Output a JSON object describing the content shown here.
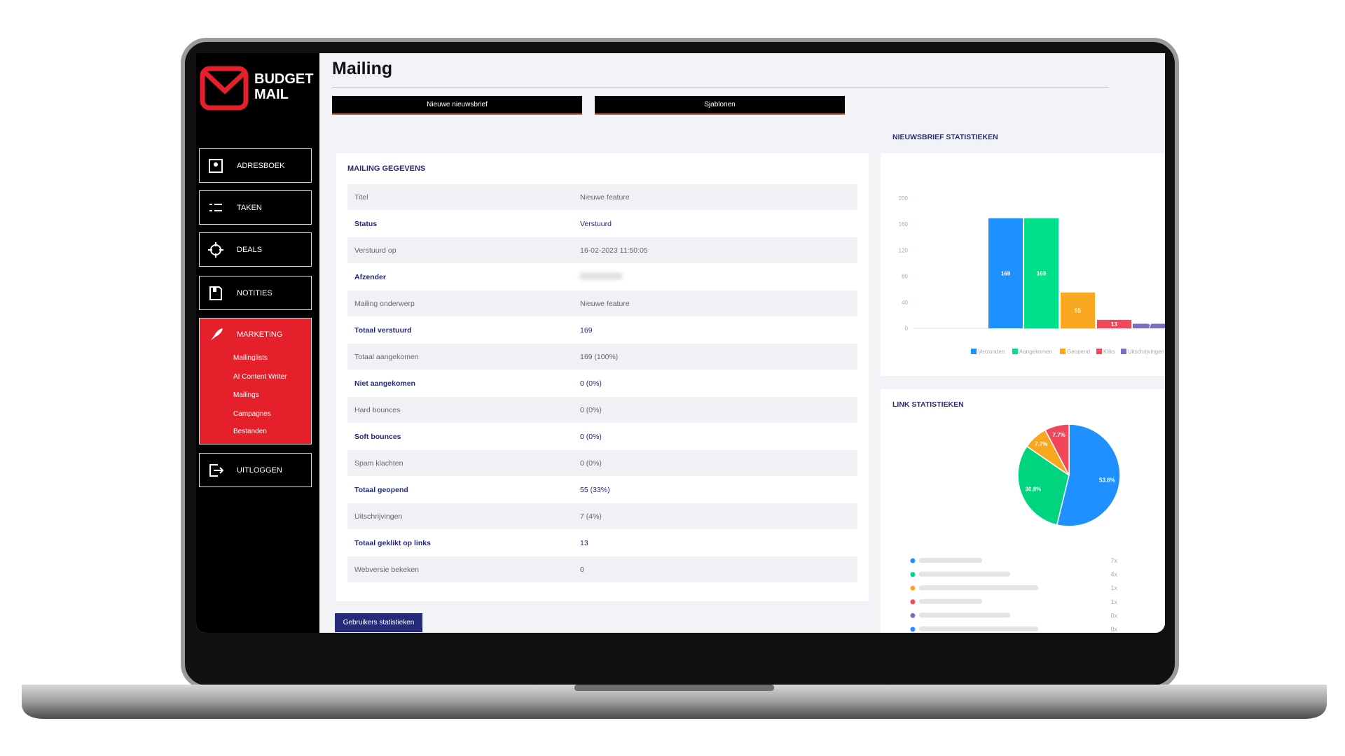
{
  "sidebar": {
    "logo": [
      "BUDGET",
      "MAIL"
    ],
    "nav": [
      "ADRESBOEK",
      "TAKEN",
      "DEALS",
      "NOTITIES",
      "MARKETING"
    ],
    "submenu": [
      "Mailinglists",
      "AI Content Writer",
      "Mailings",
      "Campagnes",
      "Bestanden"
    ],
    "logout": "UITLOGGEN"
  },
  "header": {
    "title": "Mailing",
    "buttons": [
      "Nieuwe nieuwsbrief",
      "Sjablonen"
    ]
  },
  "details": {
    "title": "MAILING GEGEVENS",
    "rows": [
      [
        "Titel",
        "Nieuwe feature"
      ],
      [
        "Status",
        "Verstuurd"
      ],
      [
        "Verstuurd op",
        "16-02-2023 11:50:05"
      ],
      [
        "Afzender"
      ],
      [
        "Mailing onderwerp",
        "Nieuwe feature"
      ],
      [
        "Totaal verstuurd",
        "169"
      ],
      [
        "Totaal aangekomen",
        "169 (100%)"
      ],
      [
        "Niet aangekomen",
        "0 (0%)"
      ],
      [
        "Hard bounces",
        "0 (0%)"
      ],
      [
        "Soft bounces",
        "0 (0%)"
      ],
      [
        "Spam klachten",
        "0 (0%)"
      ],
      [
        "Totaal geopend",
        "55 (33%)"
      ],
      [
        "Uitschrijvingen",
        "7 (4%)"
      ],
      [
        "Totaal geklikt op links",
        "13"
      ],
      [
        "Webversie bekeken",
        "0"
      ]
    ]
  },
  "footer_button": "Gebruikers statistieken",
  "chart_data": [
    {
      "type": "bar",
      "title": "NIEUWSBRIEF STATISTIEKEN",
      "categories": [
        "Verzonden",
        "Aangekomen",
        "Geopend",
        "Kliks",
        "Uitschrijvingen"
      ],
      "values": [
        169,
        169,
        55,
        13,
        7
      ],
      "colors": [
        "#1e90ff",
        "#00e08a",
        "#f9a71e",
        "#f0475b",
        "#7a6fbf"
      ],
      "ylim": [
        0,
        200
      ],
      "yticks": [
        0,
        40,
        80,
        120,
        160,
        200
      ]
    },
    {
      "type": "pie",
      "title": "LINK STATISTIEKEN",
      "values": [
        53.8,
        30.8,
        7.7,
        7.7
      ],
      "value_labels": [
        "53.8%",
        "30.8%",
        "7.7%",
        "7.7%"
      ],
      "colors": [
        "#1e90ff",
        "#00d47f",
        "#f9a71e",
        "#f0475b"
      ]
    }
  ],
  "links": {
    "counts": [
      "7x",
      "4x",
      "1x",
      "1x",
      "0x",
      "0x"
    ],
    "colors": [
      "#1e90ff",
      "#00d47f",
      "#f9a71e",
      "#f0475b",
      "#7a6fbf",
      "#1e90ff"
    ]
  }
}
